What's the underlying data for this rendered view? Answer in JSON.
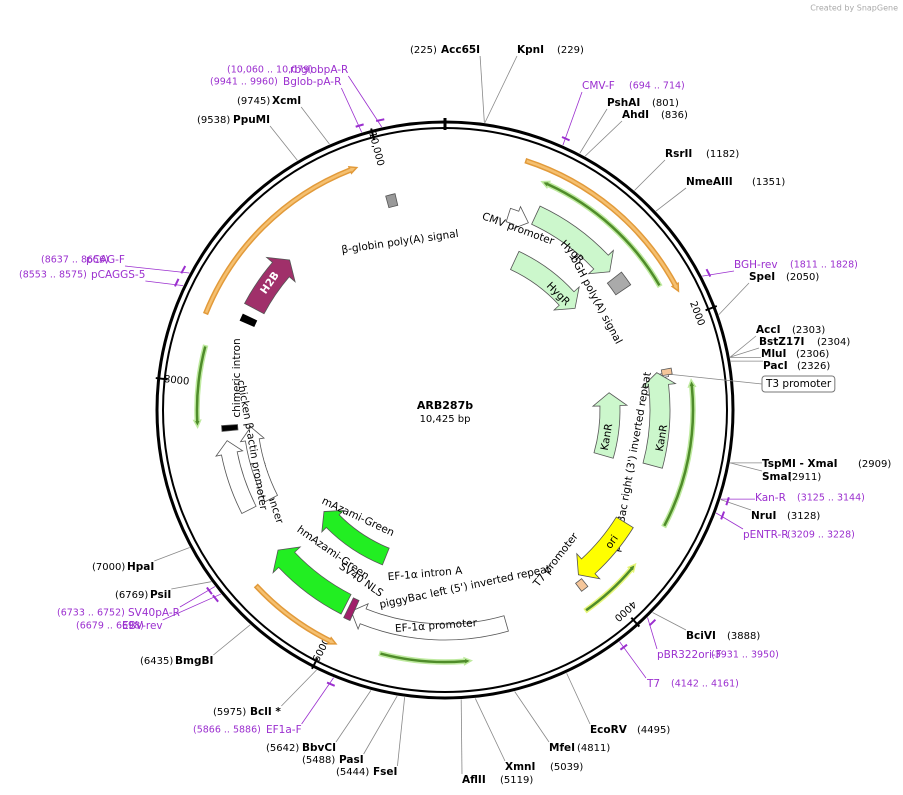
{
  "credit": "Created by SnapGene",
  "map": {
    "name": "ARB287b",
    "length": "10,425 bp"
  },
  "ticks": [
    "2000",
    "4000",
    "6000",
    "8000",
    "10,000"
  ],
  "sites": [
    {
      "name": "Acc65I",
      "position": "(225)"
    },
    {
      "name": "KpnI",
      "position": "(229)"
    },
    {
      "name": "PshAI",
      "position": "(801)"
    },
    {
      "name": "AhdI",
      "position": "(836)"
    },
    {
      "name": "RsrII",
      "position": "(1182)"
    },
    {
      "name": "NmeAIII",
      "position": "(1351)"
    },
    {
      "name": "SpeI",
      "position": "(2050)"
    },
    {
      "name": "AccI",
      "position": "(2303)"
    },
    {
      "name": "BstZ17I",
      "position": "(2304)"
    },
    {
      "name": "MluI",
      "position": "(2306)"
    },
    {
      "name": "PacI",
      "position": "(2326)"
    },
    {
      "name": "TspMI - XmaI",
      "position": "(2909)"
    },
    {
      "name": "SmaI",
      "position": "(2911)"
    },
    {
      "name": "NruI",
      "position": "(3128)"
    },
    {
      "name": "BciVI",
      "position": "(3888)"
    },
    {
      "name": "EcoRV",
      "position": "(4495)"
    },
    {
      "name": "MfeI",
      "position": "(4811)"
    },
    {
      "name": "XmnI",
      "position": "(5039)"
    },
    {
      "name": "AflII",
      "position": "(5119)"
    },
    {
      "name": "FseI",
      "position": "(5444)"
    },
    {
      "name": "PasI",
      "position": "(5488)"
    },
    {
      "name": "BbvCI",
      "position": "(5642)"
    },
    {
      "name": "BclI *",
      "position": "(5975)"
    },
    {
      "name": "BmgBI",
      "position": "(6435)"
    },
    {
      "name": "PsiI",
      "position": "(6769)"
    },
    {
      "name": "HpaI",
      "position": "(7000)"
    },
    {
      "name": "PpuMI",
      "position": "(9538)"
    },
    {
      "name": "XcmI",
      "position": "(9745)"
    }
  ],
  "primers": [
    {
      "name": "CMV-F",
      "range": "(694 .. 714)"
    },
    {
      "name": "BGH-rev",
      "range": "(1811 .. 1828)"
    },
    {
      "name": "Kan-R",
      "range": "(3125 .. 3144)"
    },
    {
      "name": "pENTR-R",
      "range": "(3209 .. 3228)"
    },
    {
      "name": "pBR322ori-F",
      "range": "(3931 .. 3950)"
    },
    {
      "name": "T7",
      "range": "(4142 .. 4161)"
    },
    {
      "name": "EF1a-F",
      "range": "(5866 .. 5886)"
    },
    {
      "name": "SV40pA-R",
      "range": "(6733 .. 6752)"
    },
    {
      "name": "EBV-rev",
      "range": "(6679 .. 6698)"
    },
    {
      "name": "pCAGGS-5",
      "range": "(8553 .. 8575)"
    },
    {
      "name": "pCAG-F",
      "range": "(8637 .. 8656)"
    },
    {
      "name": "Bglob-pA-R",
      "range": "(9941 .. 9960)"
    },
    {
      "name": "rbglobpA-R",
      "range": "(10,060 .. 10,079)"
    }
  ],
  "features": [
    {
      "label": "CMV promoter"
    },
    {
      "label": "HygR"
    },
    {
      "label": "bGH poly(A) signal"
    },
    {
      "label": "HygR"
    },
    {
      "label": "T3 promoter"
    },
    {
      "label": "KanR"
    },
    {
      "label": "KanR"
    },
    {
      "label": "piggyBac right (3') inverted repeat"
    },
    {
      "label": "ori"
    },
    {
      "label": "T7 promoter"
    },
    {
      "label": "piggyBac left (5') inverted repeat"
    },
    {
      "label": "EF-1α promoter"
    },
    {
      "label": "EF-1α intron A"
    },
    {
      "label": "mAzami-Green"
    },
    {
      "label": "hmAzami-Green"
    },
    {
      "label": "SV40 NLS"
    },
    {
      "label": "CMV enhancer"
    },
    {
      "label": "chicken β-actin promoter"
    },
    {
      "label": "chimeric intron"
    },
    {
      "label": "H2B"
    },
    {
      "label": "β-globin poly(A) signal"
    }
  ]
}
